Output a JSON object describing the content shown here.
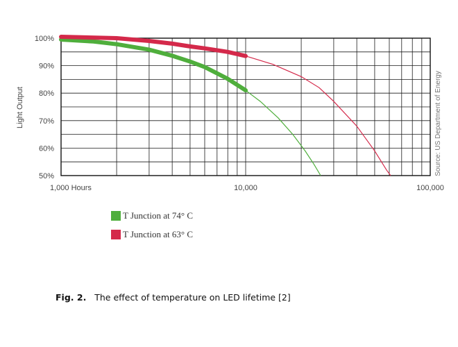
{
  "chart_data": {
    "type": "line",
    "ylabel": "Light Output",
    "xlabel": "",
    "x_scale": "log",
    "xlim": [
      1000,
      100000
    ],
    "ylim": [
      50,
      100
    ],
    "x_ticks": [
      {
        "value": 1000,
        "label": "1,000 Hours"
      },
      {
        "value": 10000,
        "label": "10,000"
      },
      {
        "value": 100000,
        "label": "100,000"
      }
    ],
    "y_ticks": [
      {
        "value": 100,
        "label": "100%"
      },
      {
        "value": 90,
        "label": "90%"
      },
      {
        "value": 80,
        "label": "80%"
      },
      {
        "value": 70,
        "label": "70%"
      },
      {
        "value": 60,
        "label": "60%"
      },
      {
        "value": 50,
        "label": "50%"
      }
    ],
    "grid": true,
    "source_note": "Source: US Department of Energy",
    "series": [
      {
        "name": "T Junction at 74° C",
        "color": "#4fae3c",
        "measured_until": 10000,
        "points": [
          [
            1000,
            99.5
          ],
          [
            1500,
            98.8
          ],
          [
            2000,
            97.8
          ],
          [
            3000,
            95.8
          ],
          [
            4000,
            93.6
          ],
          [
            5000,
            91.5
          ],
          [
            6000,
            89.5
          ],
          [
            7000,
            87.2
          ],
          [
            8000,
            85.2
          ],
          [
            10000,
            81
          ],
          [
            12000,
            77
          ],
          [
            15000,
            71
          ],
          [
            18000,
            65
          ],
          [
            21000,
            59
          ],
          [
            23500,
            54
          ],
          [
            25500,
            50
          ]
        ]
      },
      {
        "name": "T Junction at 63° C",
        "color": "#d4294a",
        "measured_until": 10000,
        "points": [
          [
            1000,
            100.5
          ],
          [
            2000,
            100
          ],
          [
            3000,
            99
          ],
          [
            4000,
            98
          ],
          [
            5000,
            97
          ],
          [
            6000,
            96.3
          ],
          [
            8000,
            95
          ],
          [
            10000,
            93.5
          ],
          [
            14000,
            90.5
          ],
          [
            20000,
            86
          ],
          [
            25000,
            82
          ],
          [
            30000,
            77
          ],
          [
            40000,
            68
          ],
          [
            50000,
            59
          ],
          [
            58000,
            52
          ],
          [
            61000,
            50
          ]
        ]
      }
    ]
  },
  "legend": [
    {
      "label": "T Junction at 74° C",
      "color": "#4fae3c"
    },
    {
      "label": "T Junction at 63° C",
      "color": "#d4294a"
    }
  ],
  "caption": {
    "number": "Fig. 2.",
    "text": "The effect of temperature on LED lifetime [2]"
  }
}
